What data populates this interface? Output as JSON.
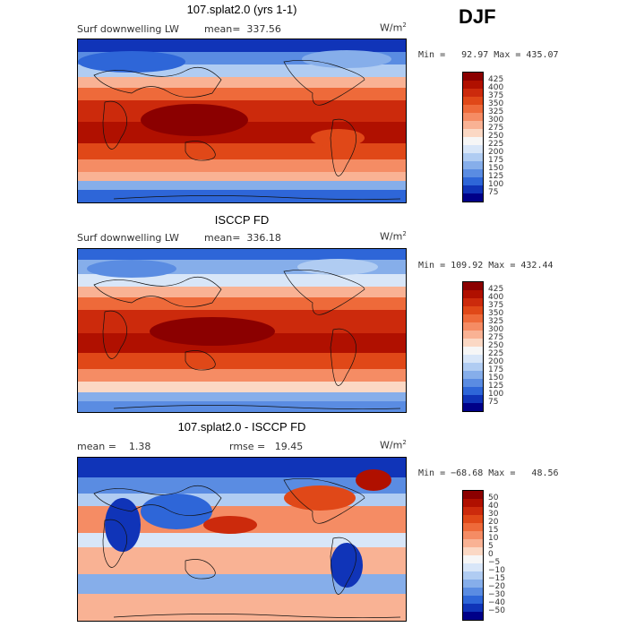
{
  "season": "DJF",
  "panels": [
    {
      "title": "107.splat2.0 (yrs 1-1)",
      "left_label": "Surf downwelling LW",
      "stat1": "mean=  337.56",
      "stat2": "",
      "units_base": "W/m",
      "units_sup": "2",
      "minmax": "Min =   92.97 Max = 435.07",
      "kind": "abs"
    },
    {
      "title": "ISCCP FD",
      "left_label": "Surf downwelling LW",
      "stat1": "mean=  336.18",
      "stat2": "",
      "units_base": "W/m",
      "units_sup": "2",
      "minmax": "Min = 109.92 Max = 432.44",
      "kind": "abs"
    },
    {
      "title": "107.splat2.0 - ISCCP FD",
      "left_label": "mean =    1.38",
      "stat1": "",
      "stat2": "rmse =   19.45",
      "units_base": "W/m",
      "units_sup": "2",
      "minmax": "Min = −68.68 Max =   48.56",
      "kind": "diff"
    }
  ],
  "colorbars": {
    "abs": {
      "labels": [
        "425",
        "400",
        "375",
        "350",
        "325",
        "300",
        "275",
        "250",
        "225",
        "200",
        "175",
        "150",
        "125",
        "100",
        "75"
      ],
      "colors": [
        "#8b0000",
        "#b01000",
        "#cc2a0c",
        "#e04818",
        "#ee6a3a",
        "#f58c64",
        "#f9b294",
        "#fbd8c4",
        "#f6f6f6",
        "#d8e6f8",
        "#b0ccf2",
        "#86aeea",
        "#5a8ce2",
        "#2e66d8",
        "#1034b8",
        "#000088"
      ]
    },
    "diff": {
      "labels": [
        "50",
        "40",
        "30",
        "20",
        "15",
        "10",
        "5",
        "0",
        "−5",
        "−10",
        "−15",
        "−20",
        "−30",
        "−40",
        "−50"
      ],
      "colors": [
        "#8b0000",
        "#b01000",
        "#cc2a0c",
        "#e04818",
        "#ee6a3a",
        "#f58c64",
        "#f9b294",
        "#fbd8c4",
        "#f6f6f6",
        "#d8e6f8",
        "#b0ccf2",
        "#86aeea",
        "#5a8ce2",
        "#2e66d8",
        "#1034b8",
        "#000088"
      ]
    }
  }
}
